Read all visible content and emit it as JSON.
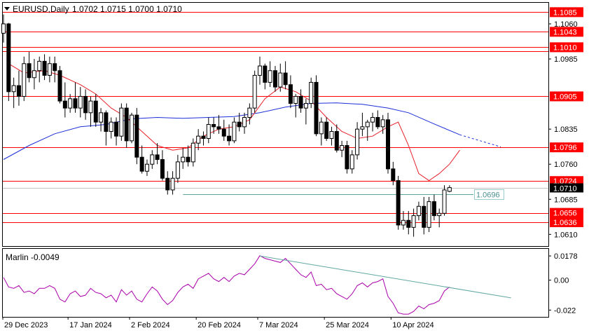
{
  "header": {
    "symbol_text": "EURUSD,Daily",
    "ohlc_text": "1.0702 1.0715 1.0700 1.0710"
  },
  "indicator_label": "Marlin -0.0049",
  "colors": {
    "level": "#ff0000",
    "level_label_bg": "#ff0000",
    "ma_fast": "#e8202a",
    "ma_slow": "#1c2fd8",
    "osc": "#aa00aa",
    "trendline": "#5fa8a0",
    "grid": "#000000"
  },
  "chart_data": [
    {
      "type": "candlestick",
      "symbol": "EURUSD",
      "timeframe": "Daily",
      "ohlc_last": {
        "open": 1.0702,
        "high": 1.0715,
        "low": 1.07,
        "close": 1.071
      },
      "y_ticks": [
        "1.1060",
        "1.0985",
        "1.0835",
        "1.0760",
        "1.0685",
        "1.0610"
      ],
      "y_tick_values": [
        1.106,
        1.0985,
        1.0835,
        1.076,
        1.0685,
        1.061
      ],
      "ylim": [
        1.0585,
        1.1105
      ],
      "x_labels": [
        "29 Dec 2023",
        "17 Jan 2024",
        "2 Feb 2024",
        "20 Feb 2024",
        "7 Mar 2024",
        "25 Mar 2024",
        "10 Apr 2024"
      ],
      "levels": [
        {
          "value": 1.1085,
          "label": "1.1085"
        },
        {
          "value": 1.1043,
          "label": "1.1043"
        },
        {
          "value": 1.101,
          "label": "1.1010"
        },
        {
          "value": 1.1001,
          "label": ""
        },
        {
          "value": 1.0905,
          "label": "1.0905"
        },
        {
          "value": 1.0796,
          "label": "1.0796"
        },
        {
          "value": 1.0724,
          "label": "1.0724"
        },
        {
          "value": 1.0656,
          "label": "1.0656"
        },
        {
          "value": 1.0636,
          "label": "1.0636"
        }
      ],
      "current_price": {
        "value": 1.071,
        "label": "1.0710"
      },
      "marked_price": {
        "value": 1.0696,
        "label": "1.0696"
      },
      "candles": [
        [
          1.104,
          1.108,
          1.102,
          1.106
        ],
        [
          1.106,
          1.1062,
          1.0895,
          1.0915
        ],
        [
          1.0915,
          1.0945,
          1.088,
          1.0928
        ],
        [
          1.0928,
          1.096,
          1.0885,
          1.0905
        ],
        [
          1.0905,
          1.099,
          1.0895,
          1.0975
        ],
        [
          1.0975,
          1.1,
          1.0935,
          1.0945
        ],
        [
          1.0945,
          1.0985,
          1.092,
          1.096
        ],
        [
          1.096,
          1.099,
          1.0935,
          1.098
        ],
        [
          1.098,
          1.0995,
          1.094,
          1.095
        ],
        [
          1.095,
          1.099,
          1.0935,
          1.0975
        ],
        [
          1.0975,
          1.099,
          1.0935,
          1.096
        ],
        [
          1.096,
          1.097,
          1.089,
          1.0895
        ],
        [
          1.0895,
          1.0935,
          1.086,
          1.088
        ],
        [
          1.088,
          1.091,
          1.087,
          1.09
        ],
        [
          1.09,
          1.0935,
          1.087,
          1.088
        ],
        [
          1.088,
          1.0925,
          1.086,
          1.0905
        ],
        [
          1.0905,
          1.092,
          1.0855,
          1.087
        ],
        [
          1.087,
          1.0905,
          1.084,
          1.0895
        ],
        [
          1.0895,
          1.091,
          1.084,
          1.085
        ],
        [
          1.085,
          1.088,
          1.083,
          1.087
        ],
        [
          1.087,
          1.0875,
          1.08,
          1.083
        ],
        [
          1.083,
          1.086,
          1.0815,
          1.085
        ],
        [
          1.085,
          1.086,
          1.08,
          1.082
        ],
        [
          1.082,
          1.089,
          1.081,
          1.088
        ],
        [
          1.088,
          1.089,
          1.0795,
          1.081
        ],
        [
          1.081,
          1.087,
          1.0805,
          1.0865
        ],
        [
          1.0865,
          1.088,
          1.076,
          1.0775
        ],
        [
          1.0775,
          1.08,
          1.074,
          1.0745
        ],
        [
          1.0745,
          1.077,
          1.0735,
          1.076
        ],
        [
          1.076,
          1.079,
          1.075,
          1.078
        ],
        [
          1.078,
          1.0805,
          1.076,
          1.077
        ],
        [
          1.077,
          1.079,
          1.0725,
          1.073
        ],
        [
          1.073,
          1.0745,
          1.0695,
          1.0705
        ],
        [
          1.0705,
          1.0745,
          1.0695,
          1.073
        ],
        [
          1.073,
          1.078,
          1.072,
          1.0765
        ],
        [
          1.0765,
          1.0795,
          1.075,
          1.0775
        ],
        [
          1.0775,
          1.08,
          1.0755,
          1.0765
        ],
        [
          1.0765,
          1.0815,
          1.0755,
          1.0805
        ],
        [
          1.0805,
          1.0835,
          1.079,
          1.082
        ],
        [
          1.082,
          1.083,
          1.08,
          1.0815
        ],
        [
          1.0815,
          1.086,
          1.0805,
          1.0845
        ],
        [
          1.0845,
          1.086,
          1.0825,
          1.084
        ],
        [
          1.084,
          1.0865,
          1.0825,
          1.0835
        ],
        [
          1.0835,
          1.0855,
          1.081,
          1.082
        ],
        [
          1.082,
          1.0845,
          1.08,
          1.081
        ],
        [
          1.081,
          1.086,
          1.0805,
          1.085
        ],
        [
          1.085,
          1.087,
          1.083,
          1.084
        ],
        [
          1.084,
          1.087,
          1.0825,
          1.086
        ],
        [
          1.086,
          1.089,
          1.0845,
          1.088
        ],
        [
          1.088,
          1.096,
          1.087,
          1.095
        ],
        [
          1.095,
          1.099,
          1.093,
          1.097
        ],
        [
          1.097,
          1.0975,
          1.092,
          1.0935
        ],
        [
          1.0935,
          1.098,
          1.0925,
          1.096
        ],
        [
          1.096,
          1.097,
          1.0915,
          1.0925
        ],
        [
          1.0925,
          1.0975,
          1.0915,
          1.0955
        ],
        [
          1.0955,
          1.098,
          1.092,
          1.093
        ],
        [
          1.093,
          1.095,
          1.088,
          1.089
        ],
        [
          1.089,
          1.091,
          1.086,
          1.0905
        ],
        [
          1.0905,
          1.092,
          1.087,
          1.088
        ],
        [
          1.088,
          1.09,
          1.0845,
          1.089
        ],
        [
          1.089,
          1.0945,
          1.088,
          1.0935
        ],
        [
          1.0935,
          1.095,
          1.082,
          1.0825
        ],
        [
          1.0825,
          1.086,
          1.08,
          1.085
        ],
        [
          1.085,
          1.086,
          1.081,
          1.0815
        ],
        [
          1.0815,
          1.084,
          1.08,
          1.083
        ],
        [
          1.083,
          1.0845,
          1.0785,
          1.079
        ],
        [
          1.079,
          1.081,
          1.0775,
          1.08
        ],
        [
          1.08,
          1.081,
          1.074,
          1.075
        ],
        [
          1.075,
          1.079,
          1.074,
          1.078
        ],
        [
          1.078,
          1.085,
          1.077,
          1.0835
        ],
        [
          1.0835,
          1.087,
          1.082,
          1.084
        ],
        [
          1.084,
          1.0855,
          1.081,
          1.085
        ],
        [
          1.085,
          1.087,
          1.083,
          1.086
        ],
        [
          1.086,
          1.0875,
          1.0835,
          1.084
        ],
        [
          1.084,
          1.0865,
          1.0825,
          1.0855
        ],
        [
          1.0855,
          1.087,
          1.074,
          1.075
        ],
        [
          1.075,
          1.0765,
          1.0715,
          1.0725
        ],
        [
          1.0725,
          1.0735,
          1.062,
          1.063
        ],
        [
          1.063,
          1.066,
          1.062,
          1.064
        ],
        [
          1.064,
          1.066,
          1.061,
          1.0625
        ],
        [
          1.0625,
          1.0665,
          1.0605,
          1.065
        ],
        [
          1.065,
          1.068,
          1.064,
          1.067
        ],
        [
          1.067,
          1.069,
          1.061,
          1.0625
        ],
        [
          1.0625,
          1.069,
          1.0615,
          1.068
        ],
        [
          1.068,
          1.0695,
          1.064,
          1.065
        ],
        [
          1.065,
          1.0665,
          1.0625,
          1.0655
        ],
        [
          1.0655,
          1.0715,
          1.065,
          1.0705
        ],
        [
          1.0702,
          1.0715,
          1.07,
          1.071
        ]
      ],
      "ma_fast": [
        [
          1,
          1.0975
        ],
        [
          4,
          1.0955
        ],
        [
          8,
          1.096
        ],
        [
          11,
          1.095
        ],
        [
          15,
          1.093
        ],
        [
          18,
          1.091
        ],
        [
          21,
          1.088
        ],
        [
          24,
          1.086
        ],
        [
          27,
          1.083
        ],
        [
          30,
          1.08
        ],
        [
          33,
          1.079
        ],
        [
          36,
          1.0795
        ],
        [
          39,
          1.082
        ],
        [
          42,
          1.0835
        ],
        [
          45,
          1.084
        ],
        [
          48,
          1.0855
        ],
        [
          51,
          1.09
        ],
        [
          54,
          1.0925
        ],
        [
          57,
          1.0915
        ],
        [
          60,
          1.0895
        ],
        [
          63,
          1.086
        ],
        [
          66,
          1.083
        ],
        [
          69,
          1.0815
        ],
        [
          72,
          1.082
        ],
        [
          75,
          1.084
        ],
        [
          77,
          1.085
        ],
        [
          79,
          1.08
        ],
        [
          81,
          1.074
        ],
        [
          83,
          1.0725
        ],
        [
          85,
          1.074
        ],
        [
          87,
          1.076
        ],
        [
          89,
          1.079
        ]
      ],
      "ma_slow": [
        [
          0,
          1.077
        ],
        [
          5,
          1.08
        ],
        [
          10,
          1.0825
        ],
        [
          15,
          1.084
        ],
        [
          20,
          1.0845
        ],
        [
          25,
          1.0857
        ],
        [
          30,
          1.086
        ],
        [
          35,
          1.0858
        ],
        [
          40,
          1.086
        ],
        [
          45,
          1.0862
        ],
        [
          50,
          1.087
        ],
        [
          55,
          1.0882
        ],
        [
          60,
          1.089
        ],
        [
          65,
          1.0891
        ],
        [
          70,
          1.0888
        ],
        [
          75,
          1.088
        ],
        [
          79,
          1.087
        ],
        [
          84,
          1.0846
        ],
        [
          89,
          1.0823
        ]
      ],
      "ma_slow_projection": [
        [
          89,
          1.0823
        ],
        [
          97,
          1.0797
        ]
      ],
      "oscillator": {
        "name": "Marlin",
        "value": -0.0049,
        "y_ticks": [
          "0.0178",
          "0.00",
          "-0.022"
        ],
        "y_tick_values": [
          0.0178,
          0.0,
          -0.022
        ],
        "ylim": [
          -0.027,
          0.023
        ],
        "values": [
          0.002,
          -0.005,
          -0.006,
          -0.004,
          -0.009,
          -0.008,
          -0.01,
          -0.006,
          -0.006,
          -0.004,
          -0.006,
          -0.014,
          -0.016,
          -0.01,
          -0.008,
          -0.012,
          -0.011,
          -0.006,
          -0.009,
          -0.01,
          -0.013,
          -0.011,
          -0.016,
          -0.007,
          -0.011,
          -0.008,
          -0.014,
          -0.016,
          -0.01,
          -0.005,
          -0.008,
          -0.014,
          -0.018,
          -0.015,
          -0.009,
          -0.005,
          -0.003,
          -0.006,
          0.001,
          0.003,
          0.005,
          0.001,
          -0.001,
          0.002,
          -0.001,
          0.003,
          0.005,
          0.004,
          0.008,
          0.012,
          0.018,
          0.016,
          0.015,
          0.014,
          0.013,
          0.016,
          0.012,
          0.008,
          0.004,
          0.002,
          0.006,
          -0.004,
          -0.003,
          -0.007,
          -0.006,
          -0.01,
          -0.012,
          -0.014,
          -0.01,
          -0.004,
          -0.002,
          -0.005,
          -0.002,
          -0.001,
          0.001,
          -0.012,
          -0.017,
          -0.024,
          -0.025,
          -0.025,
          -0.023,
          -0.019,
          -0.021,
          -0.018,
          -0.017,
          -0.015,
          -0.008,
          -0.005
        ],
        "trendline": [
          [
            50,
            0.0178
          ],
          [
            99,
            -0.013
          ]
        ]
      }
    }
  ]
}
